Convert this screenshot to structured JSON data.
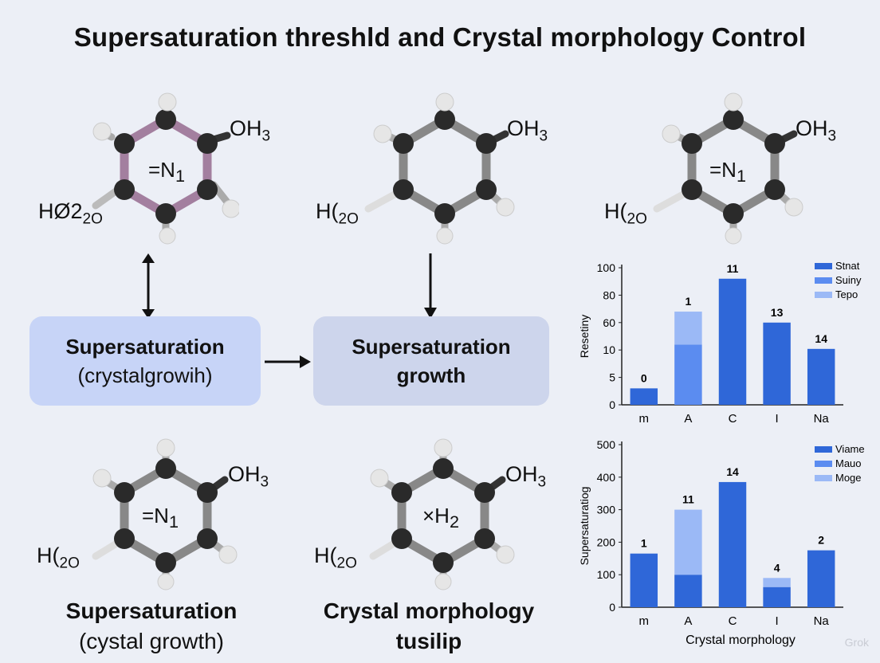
{
  "title": "Supersaturation threshld and Crystal morphology Control",
  "molecules": [
    {
      "oh_label": "OH",
      "oh_sub": "3",
      "ho_label": "HØ2",
      "ho_sub": "2O",
      "center": "=N",
      "center_sub": "1"
    },
    {
      "oh_label": "OH",
      "oh_sub": "3",
      "ho_label": "H(",
      "ho_sub": "2O",
      "center": "",
      "center_sub": ""
    },
    {
      "oh_label": "OH",
      "oh_sub": "3",
      "ho_label": "H(",
      "ho_sub": "2O",
      "center": "=N",
      "center_sub": "1"
    },
    {
      "oh_label": "OH",
      "oh_sub": "3",
      "ho_label": "H(",
      "ho_sub": "2O",
      "center": "=N",
      "center_sub": "1"
    },
    {
      "oh_label": "OH",
      "oh_sub": "3",
      "ho_label": "H(",
      "ho_sub": "2O",
      "center": "×H",
      "center_sub": "2"
    }
  ],
  "boxes": [
    {
      "line1": "Supersaturation",
      "line2": "(crystalgrowih)"
    },
    {
      "line1": "Supersaturation",
      "line2": "growth"
    }
  ],
  "captions": [
    {
      "line1": "Supersaturation",
      "line2": "(cystal growth)"
    },
    {
      "line1": "Crystal morphology",
      "line2": "tusilip"
    }
  ],
  "chart_data": [
    {
      "type": "bar",
      "categories": [
        "m",
        "A",
        "C",
        "I",
        "Na"
      ],
      "ylabel": "Resetiny",
      "xlabel": "",
      "tick_labels": [
        "0",
        "5",
        "10",
        "60",
        "80",
        "100"
      ],
      "ylim": [
        0,
        100
      ],
      "stacked": true,
      "series": [
        {
          "name": "Stnat",
          "color": "#2f67d8",
          "values": [
            3,
            0,
            92,
            60,
            12
          ]
        },
        {
          "name": "Suiny",
          "color": "#5b8cf0",
          "values": [
            0,
            20,
            0,
            0,
            0
          ]
        },
        {
          "name": "Tepo",
          "color": "#9bb9f6",
          "values": [
            0,
            48,
            0,
            0,
            0
          ]
        }
      ],
      "top_labels": [
        "0",
        "1",
        "11",
        "13",
        "14"
      ],
      "legend_position": "top-right"
    },
    {
      "type": "bar",
      "categories": [
        "m",
        "A",
        "C",
        "I",
        "Na"
      ],
      "ylabel": "Supersaturatiog",
      "xlabel": "Crystal morphology",
      "tick_labels": [
        "0",
        "100",
        "200",
        "300",
        "400",
        "500"
      ],
      "ylim": [
        0,
        500
      ],
      "stacked": true,
      "series": [
        {
          "name": "Viame",
          "color": "#2f67d8",
          "values": [
            165,
            100,
            385,
            62,
            175
          ]
        },
        {
          "name": "Mauo",
          "color": "#5b8cf0",
          "values": [
            0,
            0,
            0,
            0,
            0
          ]
        },
        {
          "name": "Moge",
          "color": "#9bb9f6",
          "values": [
            0,
            200,
            0,
            28,
            0
          ]
        }
      ],
      "top_labels": [
        "1",
        "11",
        "14",
        "4",
        "2"
      ],
      "legend_position": "top-right"
    }
  ],
  "watermark": "Grok"
}
